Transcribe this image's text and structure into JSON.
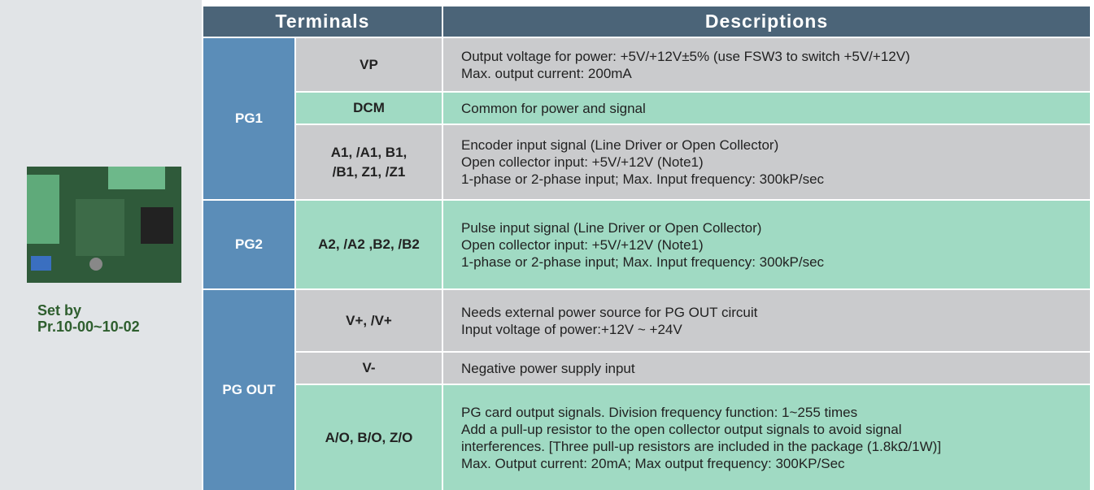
{
  "sidebar": {
    "caption": [
      "Set by",
      "Pr.10-00~10-02"
    ]
  },
  "table": {
    "headers": [
      "Terminals",
      "Descriptions"
    ],
    "groups": [
      {
        "name": "PG1",
        "rows": [
          {
            "terminal": [
              "VP"
            ],
            "description": [
              "Output voltage for power: +5V/+12V±5% (use FSW3 to switch +5V/+12V)",
              "Max. output current: 200mA"
            ]
          },
          {
            "terminal": [
              "DCM"
            ],
            "description": [
              "Common for power and signal"
            ]
          },
          {
            "terminal": [
              "A1, /A1, B1,",
              "/B1, Z1, /Z1"
            ],
            "description": [
              "Encoder input signal (Line Driver or Open Collector)",
              "Open collector input: +5V/+12V (Note1)",
              "1-phase or 2-phase input; Max. Input frequency: 300kP/sec"
            ]
          }
        ]
      },
      {
        "name": "PG2",
        "rows": [
          {
            "terminal": [
              "A2, /A2 ,B2, /B2"
            ],
            "description": [
              "Pulse input signal (Line Driver or Open Collector)",
              "Open collector input: +5V/+12V (Note1)",
              "1-phase or 2-phase input; Max. Input frequency: 300kP/sec"
            ]
          }
        ]
      },
      {
        "name": "PG OUT",
        "rows": [
          {
            "terminal": [
              "V+, /V+"
            ],
            "description": [
              "Needs external power source for PG OUT circuit",
              "Input voltage of power:+12V ~ +24V"
            ]
          },
          {
            "terminal": [
              "V-"
            ],
            "description": [
              "Negative power supply input"
            ]
          },
          {
            "terminal": [
              "A/O, B/O, Z/O"
            ],
            "description": [
              "PG card output signals. Division frequency function: 1~255 times",
              "Add a pull-up resistor to the open collector output signals to avoid signal",
              "interferences. [Three pull-up resistors are included in the package (1.8kΩ/1W)]",
              "Max. Output current: 20mA; Max output frequency: 300KP/Sec"
            ]
          }
        ]
      }
    ]
  }
}
